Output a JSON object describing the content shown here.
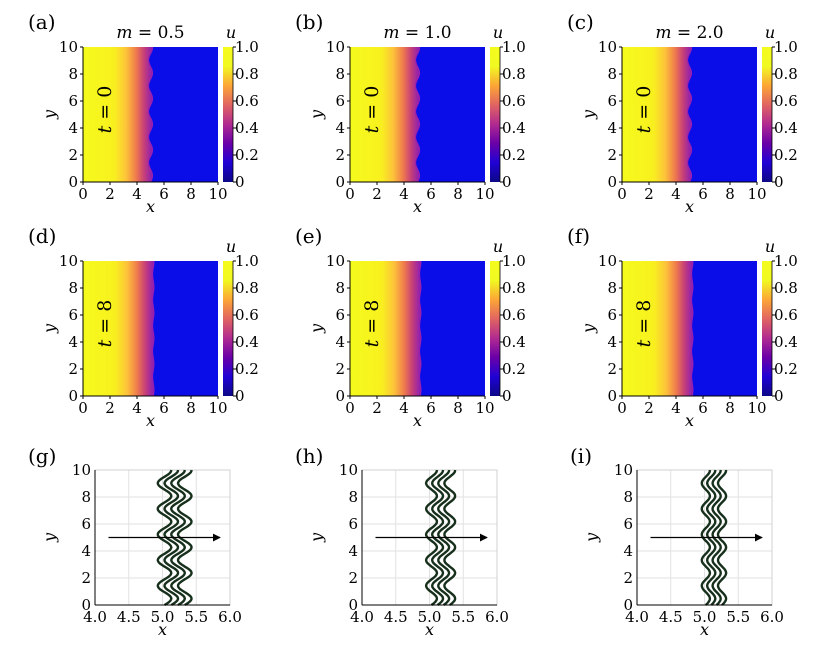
{
  "figure": {
    "colormap": [
      "#0d0887",
      "#2002d4",
      "#6a00a8",
      "#b12a90",
      "#e16462",
      "#fca636",
      "#f0f921",
      "#f5fb1d"
    ]
  },
  "chart_data": [
    {
      "type": "heatmap",
      "panel": "(a)",
      "title_var": "m",
      "title_val": "0.5",
      "cbar_label": "u",
      "annotation": "t = 0",
      "xlabel": "x",
      "ylabel": "y",
      "xlim": [
        0,
        10
      ],
      "ylim": [
        0,
        10
      ],
      "xticks": [
        "0",
        "2",
        "4",
        "6",
        "8",
        "10"
      ],
      "yticks": [
        "0",
        "2",
        "4",
        "6",
        "8",
        "10"
      ],
      "cbar_ticks": [
        "0",
        "0.2",
        "0.4",
        "0.6",
        "0.8",
        "1.0"
      ],
      "front_x": 5.0,
      "front_amp": 0.15,
      "front_width": 0.9
    },
    {
      "type": "heatmap",
      "panel": "(b)",
      "title_var": "m",
      "title_val": "1.0",
      "cbar_label": "u",
      "annotation": "t = 0",
      "xlabel": "x",
      "ylabel": "y",
      "xlim": [
        0,
        10
      ],
      "ylim": [
        0,
        10
      ],
      "xticks": [
        "0",
        "2",
        "4",
        "6",
        "8",
        "10"
      ],
      "yticks": [
        "0",
        "2",
        "4",
        "6",
        "8",
        "10"
      ],
      "cbar_ticks": [
        "0",
        "0.2",
        "0.4",
        "0.6",
        "0.8",
        "1.0"
      ],
      "front_x": 5.0,
      "front_amp": 0.15,
      "front_width": 0.9
    },
    {
      "type": "heatmap",
      "panel": "(c)",
      "title_var": "m",
      "title_val": "2.0",
      "cbar_label": "u",
      "annotation": "t = 0",
      "xlabel": "x",
      "ylabel": "y",
      "xlim": [
        0,
        10
      ],
      "ylim": [
        0,
        10
      ],
      "xticks": [
        "0",
        "2",
        "4",
        "6",
        "8",
        "10"
      ],
      "yticks": [
        "0",
        "2",
        "4",
        "6",
        "8",
        "10"
      ],
      "cbar_ticks": [
        "0",
        "0.2",
        "0.4",
        "0.6",
        "0.8",
        "1.0"
      ],
      "front_x": 5.0,
      "front_amp": 0.15,
      "front_width": 0.9
    },
    {
      "type": "heatmap",
      "panel": "(d)",
      "title_var": "",
      "title_val": "",
      "cbar_label": "u",
      "annotation": "t = 8",
      "xlabel": "x",
      "ylabel": "y",
      "xlim": [
        0,
        10
      ],
      "ylim": [
        0,
        10
      ],
      "xticks": [
        "0",
        "2",
        "4",
        "6",
        "8",
        "10"
      ],
      "yticks": [
        "0",
        "2",
        "4",
        "6",
        "8",
        "10"
      ],
      "cbar_ticks": [
        "0",
        "0.2",
        "0.4",
        "0.6",
        "0.8",
        "1.0"
      ],
      "front_x": 5.2,
      "front_amp": 0.05,
      "front_width": 0.9
    },
    {
      "type": "heatmap",
      "panel": "(e)",
      "title_var": "",
      "title_val": "",
      "cbar_label": "u",
      "annotation": "t = 8",
      "xlabel": "x",
      "ylabel": "y",
      "xlim": [
        0,
        10
      ],
      "ylim": [
        0,
        10
      ],
      "xticks": [
        "0",
        "2",
        "4",
        "6",
        "8",
        "10"
      ],
      "yticks": [
        "0",
        "2",
        "4",
        "6",
        "8",
        "10"
      ],
      "cbar_ticks": [
        "0",
        "0.2",
        "0.4",
        "0.6",
        "0.8",
        "1.0"
      ],
      "front_x": 5.2,
      "front_amp": 0.05,
      "front_width": 0.9
    },
    {
      "type": "heatmap",
      "panel": "(f)",
      "title_var": "",
      "title_val": "",
      "cbar_label": "u",
      "annotation": "t = 8",
      "xlabel": "x",
      "ylabel": "y",
      "xlim": [
        0,
        10
      ],
      "ylim": [
        0,
        10
      ],
      "xticks": [
        "0",
        "2",
        "4",
        "6",
        "8",
        "10"
      ],
      "yticks": [
        "0",
        "2",
        "4",
        "6",
        "8",
        "10"
      ],
      "cbar_ticks": [
        "0",
        "0.2",
        "0.4",
        "0.6",
        "0.8",
        "1.0"
      ],
      "front_x": 5.2,
      "front_amp": 0.05,
      "front_width": 0.9
    },
    {
      "type": "line",
      "panel": "(g)",
      "xlabel": "x",
      "ylabel": "y",
      "xlim": [
        4,
        6
      ],
      "ylim": [
        0,
        10
      ],
      "xticks": [
        "4.0",
        "4.5",
        "5.0",
        "5.5",
        "6.0"
      ],
      "yticks": [
        "0",
        "2",
        "4",
        "6",
        "8",
        "10"
      ],
      "grid": true,
      "wave_amplitude": 0.1,
      "wave_period": 1.9,
      "contours_x": [
        5.03,
        5.13,
        5.23,
        5.33
      ],
      "arrow": {
        "x_start": 4.2,
        "x_end": 5.85,
        "y": 5
      }
    },
    {
      "type": "line",
      "panel": "(h)",
      "xlabel": "x",
      "ylabel": "y",
      "xlim": [
        4,
        6
      ],
      "ylim": [
        0,
        10
      ],
      "xticks": [
        "4.0",
        "4.5",
        "5.0",
        "5.5",
        "6.0"
      ],
      "yticks": [
        "0",
        "2",
        "4",
        "6",
        "8",
        "10"
      ],
      "grid": true,
      "wave_amplitude": 0.08,
      "wave_period": 1.9,
      "contours_x": [
        5.03,
        5.12,
        5.21,
        5.3
      ],
      "arrow": {
        "x_start": 4.2,
        "x_end": 5.85,
        "y": 5
      }
    },
    {
      "type": "line",
      "panel": "(i)",
      "xlabel": "x",
      "ylabel": "y",
      "xlim": [
        4,
        6
      ],
      "ylim": [
        0,
        10
      ],
      "xticks": [
        "4.0",
        "4.5",
        "5.0",
        "5.5",
        "6.0"
      ],
      "yticks": [
        "0",
        "2",
        "4",
        "6",
        "8",
        "10"
      ],
      "grid": true,
      "wave_amplitude": 0.06,
      "wave_period": 1.9,
      "contours_x": [
        5.02,
        5.1,
        5.18,
        5.26
      ],
      "arrow": {
        "x_start": 4.2,
        "x_end": 5.85,
        "y": 5
      }
    }
  ]
}
